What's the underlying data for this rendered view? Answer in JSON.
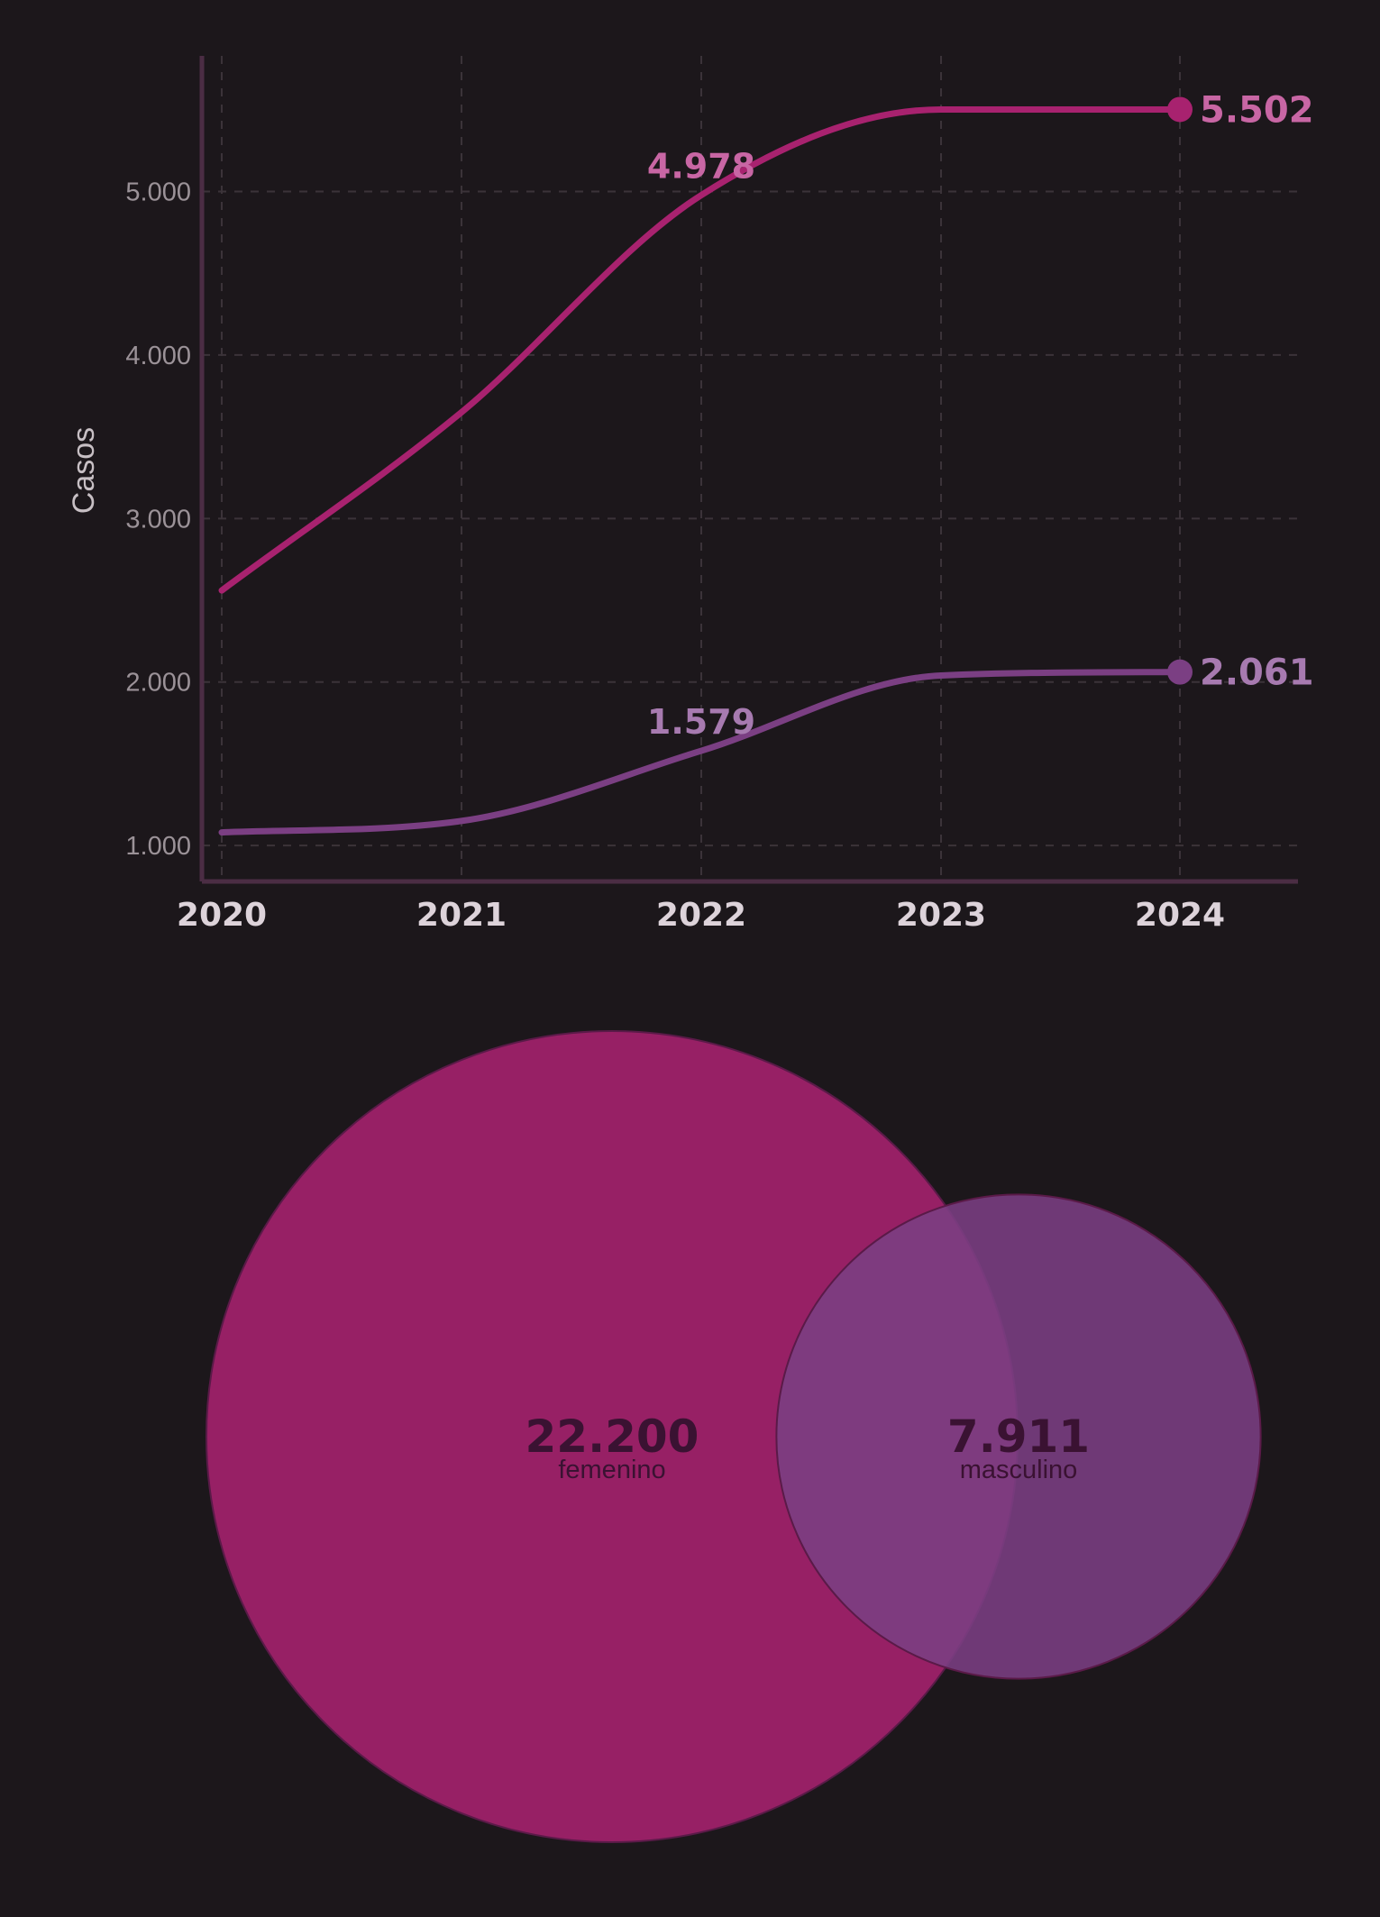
{
  "colors": {
    "background": "#1c171b",
    "femenino": "#a8226f",
    "masculino": "#7b3f83",
    "femenino_label": "#c866a4",
    "masculino_label": "#a77ab0",
    "grid": "#3b3339",
    "axis": "#4b2d44"
  },
  "chart_data": [
    {
      "type": "line",
      "title": "",
      "xlabel": "",
      "ylabel": "Casos",
      "x": [
        "2020",
        "2021",
        "2022",
        "2023",
        "2024"
      ],
      "ylim": [
        780,
        5830
      ],
      "yticks": [
        1000,
        2000,
        3000,
        4000,
        5000
      ],
      "ytick_labels": [
        "1.000",
        "2.000",
        "3.000",
        "4.000",
        "5.000"
      ],
      "grid": true,
      "legend": "none",
      "series": [
        {
          "key": "femenino",
          "values": [
            2560,
            3650,
            4978,
            5502,
            5502
          ],
          "color": "#a8226f",
          "label_color": "#c866a4",
          "mid_label": "4.978",
          "mid_label_index": 2,
          "end_label": "5.502"
        },
        {
          "key": "masculino",
          "values": [
            1080,
            1150,
            1579,
            2040,
            2061
          ],
          "color": "#7b3f83",
          "label_color": "#a77ab0",
          "mid_label": "1.579",
          "mid_label_index": 2,
          "end_label": "2.061"
        }
      ]
    },
    {
      "type": "bubble",
      "bubbles": [
        {
          "key": "femenino",
          "value": 22200,
          "value_label": "22.200",
          "label": "femenino",
          "color": "#a8226f"
        },
        {
          "key": "masculino",
          "value": 7911,
          "value_label": "7.911",
          "label": "masculino",
          "color": "#7b3f83"
        }
      ]
    }
  ]
}
